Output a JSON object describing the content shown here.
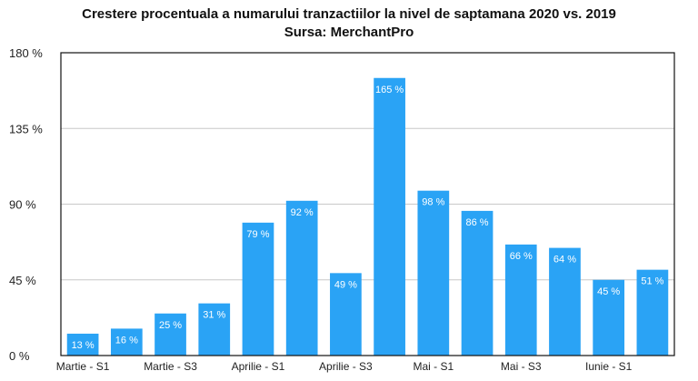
{
  "chart_data": {
    "type": "bar",
    "title": "Crestere procentuala a numarului tranzactiilor la nivel de saptamana 2020 vs. 2019",
    "subtitle": "Sursa: MerchantPro",
    "xlabel": "",
    "ylabel": "",
    "ylim": [
      0,
      180
    ],
    "yticks": [
      0,
      45,
      90,
      135,
      180
    ],
    "ytick_labels": [
      "0 %",
      "45 %",
      "90 %",
      "135 %",
      "180 %"
    ],
    "grid": true,
    "legend": "none",
    "bar_color": "#2aa3f5",
    "categories": [
      "Martie - S1",
      "Martie - S2",
      "Martie - S3",
      "Martie - S4",
      "Aprilie - S1",
      "Aprilie - S2",
      "Aprilie - S3",
      "Aprilie - S4",
      "Mai - S1",
      "Mai - S2",
      "Mai - S3",
      "Mai - S4",
      "Iunie - S1",
      "Iunie - S2"
    ],
    "shown_category_labels": [
      "Martie - S1",
      "",
      "Martie - S3",
      "",
      "Aprilie - S1",
      "",
      "Aprilie - S3",
      "",
      "Mai - S1",
      "",
      "Mai - S3",
      "",
      "Iunie - S1",
      ""
    ],
    "values": [
      13,
      16,
      25,
      31,
      79,
      92,
      49,
      165,
      98,
      86,
      66,
      64,
      45,
      51
    ],
    "value_labels": [
      "13 %",
      "16 %",
      "25 %",
      "31 %",
      "79 %",
      "92 %",
      "49 %",
      "165 %",
      "98 %",
      "86 %",
      "66 %",
      "64 %",
      "45 %",
      "51 %"
    ]
  }
}
